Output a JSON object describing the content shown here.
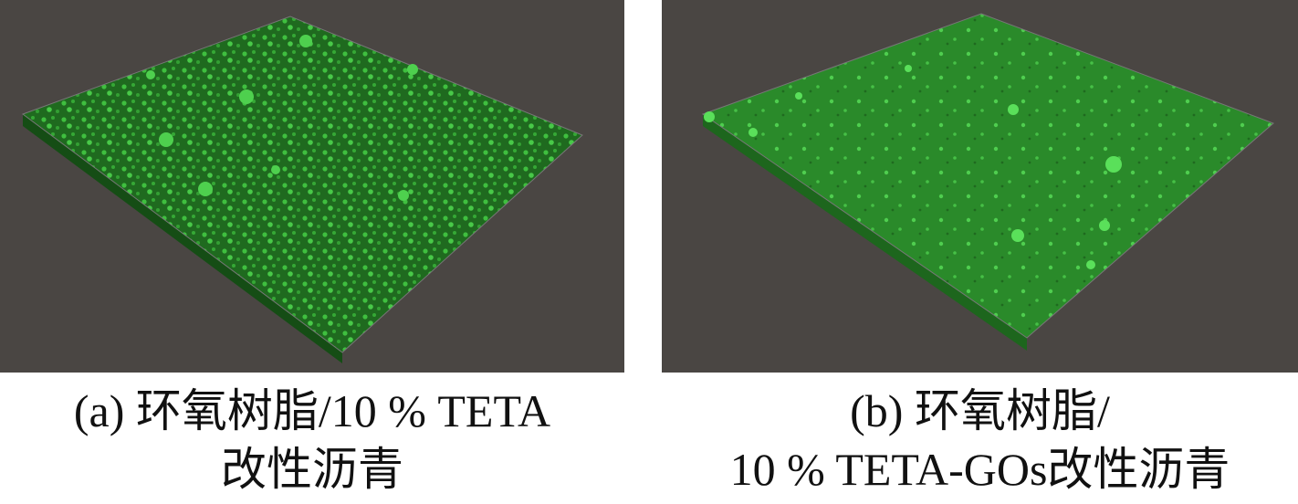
{
  "figure": {
    "panels": [
      {
        "caption_lines": [
          "(a) 环氧树脂/10 % TETA",
          "改性沥青"
        ]
      },
      {
        "caption_lines": [
          "(b) 环氧树脂/",
          "10 % TETA-GOs改性沥青"
        ]
      }
    ]
  }
}
